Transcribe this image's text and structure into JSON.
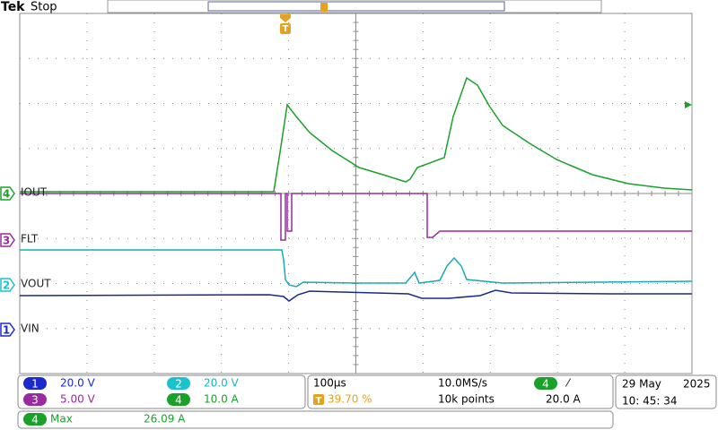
{
  "header": {
    "brand": "Tek",
    "status": "Stop"
  },
  "channels": [
    {
      "number": "4",
      "label": "IOUT"
    },
    {
      "number": "3",
      "label": "FLT"
    },
    {
      "number": "2",
      "label": "VOUT"
    },
    {
      "number": "1",
      "label": "VIN"
    }
  ],
  "readouts": {
    "channels": [
      {
        "number": "1",
        "scale": "20.0 V"
      },
      {
        "number": "2",
        "scale": "20.0 V"
      },
      {
        "number": "3",
        "scale": "5.00 V"
      },
      {
        "number": "4",
        "scale": "10.0 A"
      }
    ],
    "horizontal": {
      "timebase": "100µs",
      "sample_rate": "10.0MS/s",
      "trigger_position": "39.70 %",
      "record_length": "10k points"
    },
    "trigger": {
      "source": "4",
      "slope": "⁄",
      "level": "20.0 A"
    }
  },
  "date": {
    "day_month": "29 May",
    "year": "2025",
    "time": "10: 45: 34"
  },
  "measurement": {
    "source": "4",
    "name": "Max",
    "value": "26.09 A"
  }
}
